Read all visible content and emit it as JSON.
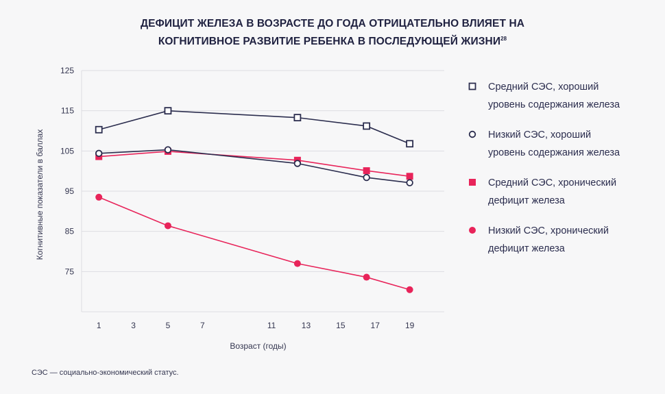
{
  "title_line1": "ДЕФИЦИТ ЖЕЛЕЗА В ВОЗРАСТЕ ДО ГОДА ОТРИЦАТЕЛЬНО ВЛИЯЕТ НА",
  "title_line2": "КОГНИТИВНОЕ РАЗВИТИЕ РЕБЕНКА В ПОСЛЕДУЮЩЕЙ ЖИЗНИ",
  "title_ref": "28",
  "footnote": "СЭС — социально-экономический статус.",
  "colors": {
    "dark": "#2b2d4e",
    "pink": "#e8245a",
    "grid": "#dcdce2"
  },
  "chart_data": {
    "type": "line",
    "title": "ДЕФИЦИТ ЖЕЛЕЗА В ВОЗРАСТЕ ДО ГОДА ОТРИЦАТЕЛЬНО ВЛИЯЕТ НА КОГНИТИВНОЕ РАЗВИТИЕ РЕБЕНКА В ПОСЛЕДУЮЩЕЙ ЖИЗНИ",
    "xlabel": "Возраст (годы)",
    "ylabel": "Когнитивные показатели в баллах",
    "xlim": [
      0,
      21
    ],
    "ylim": [
      65,
      125
    ],
    "xticks": [
      1,
      3,
      5,
      7,
      11,
      13,
      15,
      17,
      19
    ],
    "xtick_labels": [
      "1",
      "3",
      "5",
      "7",
      "11",
      "13",
      "15",
      "17",
      "19"
    ],
    "yticks": [
      75,
      85,
      95,
      105,
      115,
      125
    ],
    "ytick_labels": [
      "75",
      "85",
      "95",
      "105",
      "115",
      "125"
    ],
    "grid": "horizontal",
    "legend_position": "right",
    "series": [
      {
        "name": "Средний СЭС, хороший уровень содержания железа",
        "label_lines": [
          "Средний СЭС, хороший",
          "уровень содержания железа"
        ],
        "marker": "open-square",
        "color": "#2b2d4e",
        "points": [
          [
            1,
            110.3
          ],
          [
            5,
            115
          ],
          [
            12.5,
            113.3
          ],
          [
            16.5,
            111.2
          ],
          [
            19,
            106.8
          ]
        ]
      },
      {
        "name": "Низкий СЭС, хороший уровень содержания железа",
        "label_lines": [
          "Низкий СЭС, хороший",
          "уровень содержания железа"
        ],
        "marker": "open-circle",
        "color": "#2b2d4e",
        "points": [
          [
            1,
            104.4
          ],
          [
            5,
            105.3
          ],
          [
            12.5,
            101.9
          ],
          [
            16.5,
            98.4
          ],
          [
            19,
            97.1
          ]
        ]
      },
      {
        "name": "Средний СЭС, хронический дефицит железа",
        "label_lines": [
          "Средний СЭС, хронический",
          "дефицит железа"
        ],
        "marker": "filled-square",
        "color": "#e8245a",
        "points": [
          [
            1,
            103.6
          ],
          [
            5,
            104.9
          ],
          [
            12.5,
            102.7
          ],
          [
            16.5,
            100.1
          ],
          [
            19,
            98.7
          ]
        ]
      },
      {
        "name": "Низкий СЭС, хронический дефицит железа",
        "label_lines": [
          "Низкий СЭС, хронический",
          "дефицит железа"
        ],
        "marker": "filled-circle",
        "color": "#e8245a",
        "points": [
          [
            1,
            93.5
          ],
          [
            5,
            86.4
          ],
          [
            12.5,
            77
          ],
          [
            16.5,
            73.6
          ],
          [
            19,
            70.5
          ]
        ]
      }
    ]
  }
}
